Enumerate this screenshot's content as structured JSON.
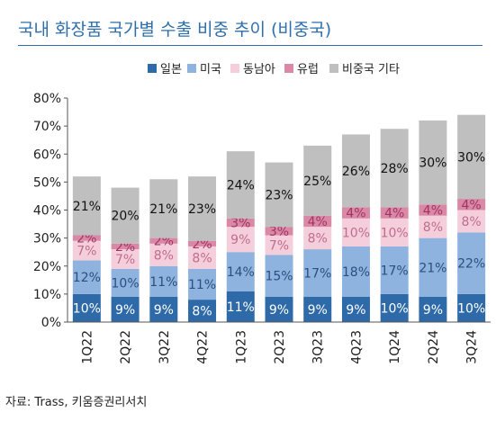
{
  "title": "국내 화장품 국가별 수출 비중 추이 (비중국)",
  "source": "자료: Trass, 키움증권리서치",
  "chart_data": {
    "type": "bar",
    "stacked": true,
    "categories": [
      "1Q22",
      "2Q22",
      "3Q22",
      "4Q22",
      "1Q23",
      "2Q23",
      "3Q23",
      "4Q23",
      "1Q24",
      "2Q24",
      "3Q24"
    ],
    "series": [
      {
        "name": "일본",
        "color": "#2e6aa8",
        "label_color": "#ffffff",
        "values": [
          10,
          9,
          9,
          8,
          11,
          9,
          9,
          9,
          10,
          9,
          10
        ]
      },
      {
        "name": "미국",
        "color": "#8eb3df",
        "label_color": "#2b4f7e",
        "values": [
          12,
          10,
          11,
          11,
          14,
          15,
          17,
          18,
          17,
          21,
          22
        ]
      },
      {
        "name": "동남아",
        "color": "#f4cfdb",
        "label_color": "#c06d8d",
        "values": [
          7,
          7,
          8,
          8,
          9,
          7,
          8,
          10,
          10,
          8,
          8
        ]
      },
      {
        "name": "유럽",
        "color": "#d988a6",
        "label_color": "#a23463",
        "values": [
          2,
          2,
          2,
          2,
          3,
          3,
          4,
          4,
          4,
          4,
          4
        ]
      },
      {
        "name": "비중국 기타",
        "color": "#bfbfbf",
        "label_color": "#111111",
        "values": [
          21,
          20,
          21,
          23,
          24,
          23,
          25,
          26,
          28,
          30,
          30
        ]
      }
    ],
    "value_suffix": "%",
    "y_ticks": [
      "0%",
      "10%",
      "20%",
      "30%",
      "40%",
      "50%",
      "60%",
      "70%",
      "80%"
    ],
    "ylim": [
      0,
      80
    ],
    "grid": false,
    "legend_position": "top-center"
  }
}
